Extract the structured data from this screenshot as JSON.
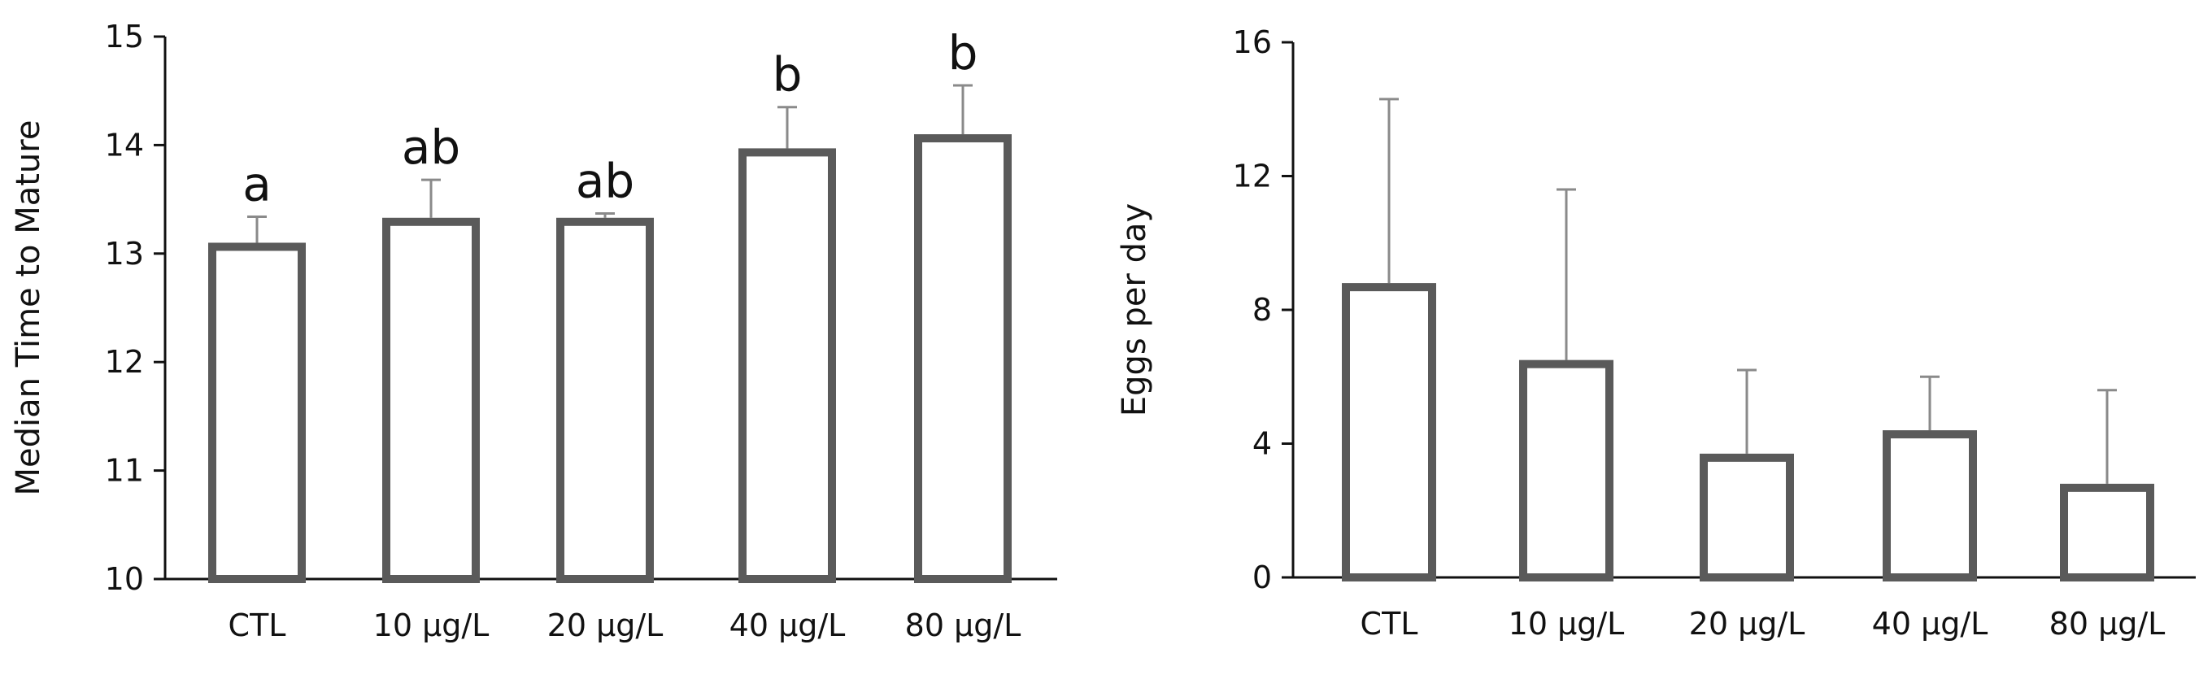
{
  "colors": {
    "bar_stroke": "#5a5a5a",
    "bar_fill": "#ffffff",
    "error_bar": "#8a8a8a",
    "axis": "#111111",
    "text": "#111111"
  },
  "chart_data": [
    {
      "type": "bar",
      "title": "",
      "xlabel": "",
      "ylabel": "Median Time to Mature",
      "categories": [
        "CTL",
        "10 µg/L",
        "20 µg/L",
        "40 µg/L",
        "80 µg/L"
      ],
      "values": [
        13.1,
        13.33,
        13.33,
        13.97,
        14.1
      ],
      "error_upper": [
        0.24,
        0.35,
        0.04,
        0.38,
        0.45
      ],
      "significance_letters": [
        "a",
        "ab",
        "ab",
        "b",
        "b"
      ],
      "ylim": [
        10,
        15
      ],
      "yticks": [
        10,
        11,
        12,
        13,
        14,
        15
      ],
      "grid": false
    },
    {
      "type": "bar",
      "title": "",
      "xlabel": "",
      "ylabel": "Eggs per day",
      "categories": [
        "CTL",
        "10 µg/L",
        "20 µg/L",
        "40 µg/L",
        "80 µg/L"
      ],
      "values": [
        8.8,
        6.5,
        3.7,
        4.4,
        2.8
      ],
      "error_upper": [
        5.5,
        5.1,
        2.5,
        1.6,
        2.8
      ],
      "significance_letters": [],
      "ylim": [
        0,
        16
      ],
      "yticks": [
        0,
        4,
        8,
        12,
        16
      ],
      "grid": false
    }
  ]
}
